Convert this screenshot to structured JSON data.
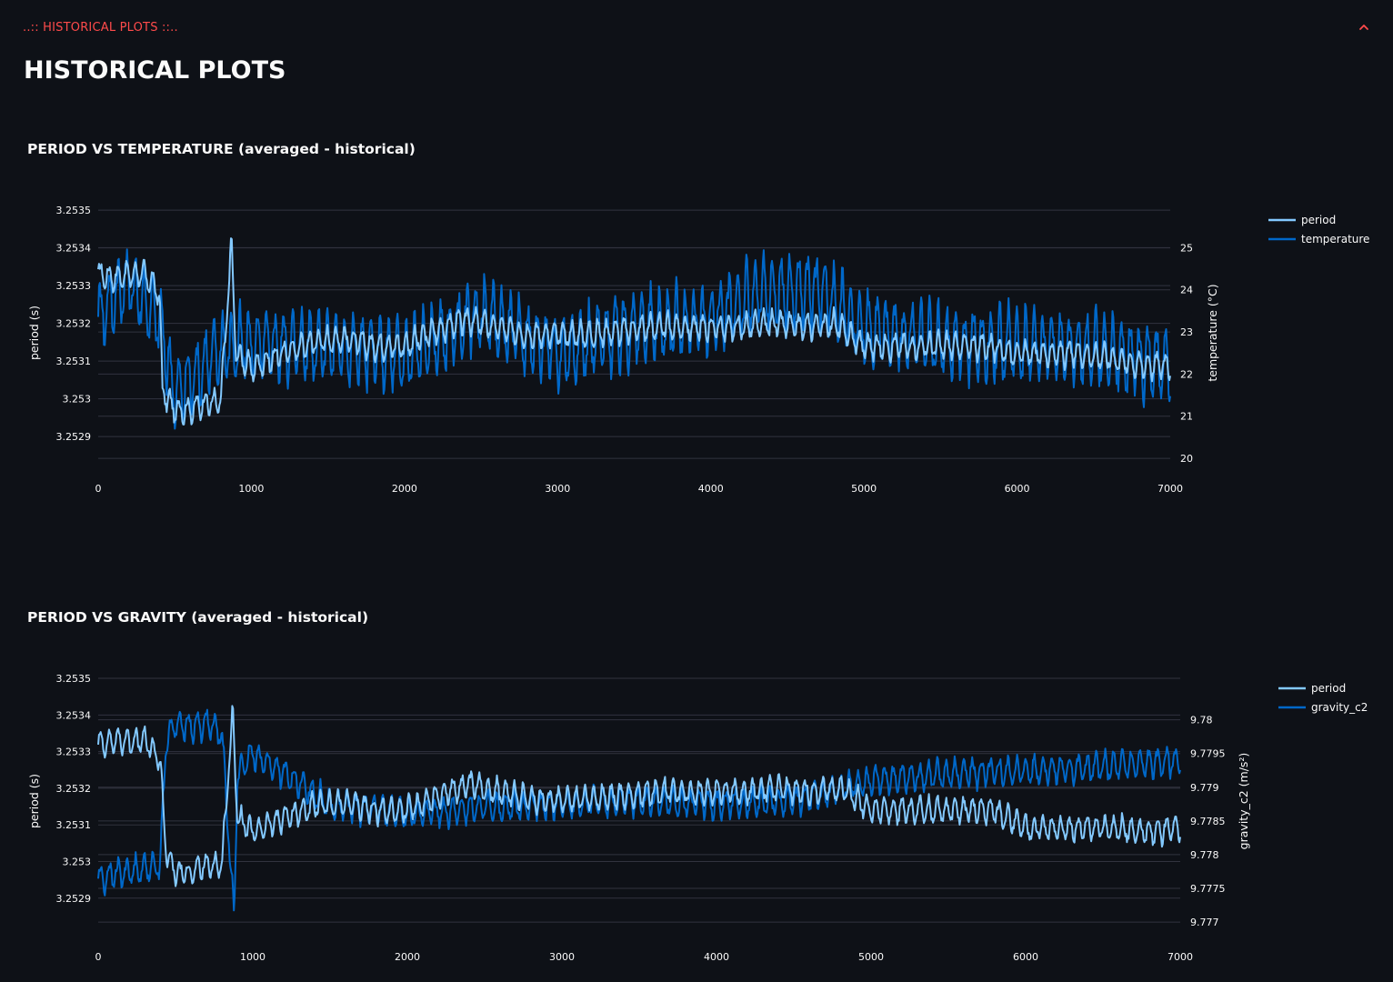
{
  "expander": {
    "label": "..:: HISTORICAL PLOTS ::..",
    "icon": "chevron-up-icon",
    "accent_color": "#ff4b4b"
  },
  "page_title": "HISTORICAL PLOTS",
  "colors": {
    "background": "#0e1117",
    "period": "#83c9ff",
    "secondary": "#0068c9",
    "grid": "#31333f"
  },
  "chart_data": [
    {
      "type": "line",
      "title": "PERIOD VS TEMPERATURE (averaged - historical)",
      "xlabel": "",
      "ylabel": "period (s)",
      "y2label": "temperature (°C)",
      "xlim": [
        0,
        7000
      ],
      "ylim": [
        3.25284,
        3.25351
      ],
      "y2lim": [
        19.98,
        25.98
      ],
      "xticks": [
        0,
        1000,
        2000,
        3000,
        4000,
        5000,
        6000,
        7000
      ],
      "yticks": [
        "3.2529",
        "3.253",
        "3.2531",
        "3.2532",
        "3.2533",
        "3.2534",
        "3.2535"
      ],
      "y2ticks": [
        "20",
        "21",
        "22",
        "23",
        "24",
        "25"
      ],
      "legend_position": "top-right",
      "grid": true,
      "series": [
        {
          "name": "period",
          "axis": "left",
          "color": "#83c9ff",
          "x": [
            0,
            100,
            200,
            300,
            400,
            420,
            500,
            600,
            700,
            800,
            870,
            900,
            1000,
            1200,
            1400,
            1600,
            1800,
            2000,
            2200,
            2400,
            2600,
            2800,
            3000,
            3200,
            3400,
            3600,
            3800,
            4000,
            4200,
            4400,
            4600,
            4800,
            5000,
            5200,
            5400,
            5600,
            5800,
            6000,
            6200,
            6400,
            6600,
            6800,
            7000
          ],
          "values": [
            3.25333,
            3.25332,
            3.25333,
            3.25333,
            3.25328,
            3.25302,
            3.25297,
            3.25297,
            3.25299,
            3.25299,
            3.25341,
            3.25312,
            3.25308,
            3.25312,
            3.25315,
            3.25316,
            3.25314,
            3.25314,
            3.25318,
            3.25321,
            3.25319,
            3.25317,
            3.25317,
            3.25317,
            3.25318,
            3.25319,
            3.25319,
            3.25319,
            3.25319,
            3.2532,
            3.25319,
            3.2532,
            3.25314,
            3.25314,
            3.25314,
            3.25314,
            3.25314,
            3.25312,
            3.25312,
            3.25312,
            3.25311,
            3.25309,
            3.25309
          ],
          "amplitude": 4e-05
        },
        {
          "name": "temperature",
          "axis": "right",
          "color": "#0068c9",
          "x": [
            0,
            200,
            400,
            500,
            800,
            1000,
            1500,
            2000,
            2500,
            3000,
            3500,
            4000,
            4300,
            4700,
            5000,
            5500,
            6000,
            6500,
            7000
          ],
          "values": [
            23.4,
            24.2,
            23.3,
            21.5,
            22.6,
            22.7,
            22.7,
            22.4,
            23.4,
            22.5,
            23.1,
            23.3,
            23.9,
            24.0,
            23.1,
            22.7,
            22.7,
            22.6,
            22.2
          ],
          "amplitude": 1.0
        }
      ]
    },
    {
      "type": "line",
      "title": "PERIOD VS GRAVITY (averaged - historical)",
      "xlabel": "",
      "ylabel": "period (s)",
      "y2label": "gravity_c2 (m/s²)",
      "xlim": [
        0,
        7000
      ],
      "ylim": [
        3.25282,
        3.25351
      ],
      "y2lim": [
        9.77692,
        9.78067
      ],
      "xticks": [
        0,
        1000,
        2000,
        3000,
        4000,
        5000,
        6000,
        7000
      ],
      "yticks": [
        "3.2529",
        "3.253",
        "3.2531",
        "3.2532",
        "3.2533",
        "3.2534",
        "3.2535"
      ],
      "y2ticks": [
        "9.777",
        "9.7775",
        "9.778",
        "9.7785",
        "9.779",
        "9.7795",
        "9.78"
      ],
      "legend_position": "top-right",
      "grid": true,
      "series": [
        {
          "name": "period",
          "axis": "left",
          "color": "#83c9ff",
          "x": [
            0,
            100,
            200,
            300,
            400,
            440,
            500,
            600,
            700,
            800,
            870,
            900,
            1000,
            1200,
            1400,
            1600,
            1800,
            2000,
            2200,
            2400,
            2600,
            2800,
            3000,
            3200,
            3400,
            3600,
            3800,
            4000,
            4200,
            4400,
            4600,
            4800,
            5000,
            5200,
            5400,
            5600,
            5800,
            6000,
            6200,
            6400,
            6600,
            6800,
            7000
          ],
          "values": [
            3.25332,
            3.25333,
            3.25333,
            3.25333,
            3.25328,
            3.25302,
            3.25297,
            3.25297,
            3.25299,
            3.25299,
            3.25341,
            3.25312,
            3.25308,
            3.25312,
            3.25315,
            3.25316,
            3.25314,
            3.25314,
            3.25318,
            3.25321,
            3.25319,
            3.25317,
            3.25317,
            3.25317,
            3.25318,
            3.25319,
            3.25319,
            3.25319,
            3.25319,
            3.2532,
            3.25319,
            3.2532,
            3.25314,
            3.25314,
            3.25314,
            3.25314,
            3.25314,
            3.25309,
            3.25309,
            3.25309,
            3.25309,
            3.25308,
            3.25309
          ],
          "amplitude": 4e-05
        },
        {
          "name": "gravity_c2",
          "axis": "right",
          "color": "#0068c9",
          "x": [
            0,
            100,
            200,
            300,
            400,
            440,
            500,
            600,
            700,
            800,
            880,
            900,
            1000,
            1200,
            1500,
            2000,
            2500,
            3000,
            3500,
            4000,
            4500,
            5000,
            5500,
            6000,
            6500,
            7000
          ],
          "values": [
            9.77762,
            9.77772,
            9.77775,
            9.7778,
            9.77785,
            9.7797,
            9.77995,
            9.7799,
            9.77995,
            9.7798,
            9.77705,
            9.7792,
            9.7795,
            9.7792,
            9.77875,
            9.7786,
            9.7787,
            9.77875,
            9.7788,
            9.77875,
            9.7788,
            9.7791,
            9.7792,
            9.77925,
            9.7793,
            9.7794
          ],
          "amplitude": 0.00025
        }
      ]
    }
  ]
}
